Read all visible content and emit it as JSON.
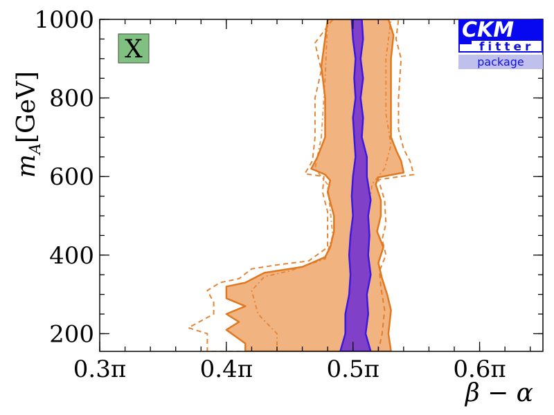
{
  "chart_data": {
    "type": "area",
    "xlabel": "β − α",
    "ylabel_main": "m",
    "ylabel_sub": "A",
    "ylabel_unit": "[GeV]",
    "xlim": [
      0.3,
      0.65
    ],
    "ylim": [
      155,
      1000
    ],
    "xticks": [
      {
        "value": 0.3,
        "label": "0.3π"
      },
      {
        "value": 0.4,
        "label": "0.4π"
      },
      {
        "value": 0.5,
        "label": "0.5π"
      },
      {
        "value": 0.6,
        "label": "0.6π"
      }
    ],
    "yticks": [
      {
        "value": 200,
        "label": "200"
      },
      {
        "value": 400,
        "label": "400"
      },
      {
        "value": 600,
        "label": "600"
      },
      {
        "value": 800,
        "label": "800"
      },
      {
        "value": 1000,
        "label": "1000"
      }
    ],
    "x_minor_step": 0.02,
    "y_minor_step": 50,
    "panel_label": "X",
    "colors": {
      "orange_fill": "#f0b07a",
      "orange_line": "#e07820",
      "blue_fill": "#8040c8",
      "blue_line": "#3a18e0",
      "panel_box": "#80c080"
    },
    "regions": [
      {
        "style": "orange-dashed",
        "polygon": [
          [
            0.484,
            1000
          ],
          [
            0.47,
            940
          ],
          [
            0.475,
            870
          ],
          [
            0.47,
            800
          ],
          [
            0.47,
            700
          ],
          [
            0.468,
            640
          ],
          [
            0.462,
            607
          ],
          [
            0.477,
            600
          ],
          [
            0.476,
            560
          ],
          [
            0.48,
            510
          ],
          [
            0.48,
            460
          ],
          [
            0.48,
            420
          ],
          [
            0.465,
            385
          ],
          [
            0.44,
            375
          ],
          [
            0.42,
            365
          ],
          [
            0.41,
            340
          ],
          [
            0.395,
            330
          ],
          [
            0.385,
            310
          ],
          [
            0.39,
            280
          ],
          [
            0.39,
            250
          ],
          [
            0.37,
            215
          ],
          [
            0.385,
            200
          ],
          [
            0.385,
            175
          ],
          [
            0.385,
            155
          ],
          [
            0.52,
            155
          ],
          [
            0.523,
            200
          ],
          [
            0.525,
            260
          ],
          [
            0.522,
            320
          ],
          [
            0.521,
            360
          ],
          [
            0.526,
            400
          ],
          [
            0.523,
            440
          ],
          [
            0.526,
            480
          ],
          [
            0.525,
            540
          ],
          [
            0.52,
            592
          ],
          [
            0.548,
            605
          ],
          [
            0.545,
            640
          ],
          [
            0.54,
            670
          ],
          [
            0.536,
            720
          ],
          [
            0.536,
            800
          ],
          [
            0.538,
            900
          ],
          [
            0.534,
            950
          ],
          [
            0.536,
            1000
          ]
        ]
      },
      {
        "style": "orange-dotted",
        "polygon": [
          [
            0.475,
            700
          ],
          [
            0.47,
            620
          ],
          [
            0.48,
            580
          ],
          [
            0.484,
            450
          ],
          [
            0.478,
            390
          ],
          [
            0.45,
            360
          ],
          [
            0.43,
            345
          ],
          [
            0.42,
            310
          ],
          [
            0.425,
            250
          ],
          [
            0.44,
            200
          ],
          [
            0.44,
            155
          ],
          [
            0.505,
            155
          ],
          [
            0.505,
            250
          ],
          [
            0.508,
            330
          ],
          [
            0.51,
            400
          ],
          [
            0.512,
            500
          ],
          [
            0.515,
            580
          ],
          [
            0.525,
            620
          ],
          [
            0.53,
            680
          ],
          [
            0.526,
            760
          ],
          [
            0.526,
            900
          ],
          [
            0.53,
            1000
          ],
          [
            0.48,
            1000
          ],
          [
            0.478,
            850
          ]
        ]
      },
      {
        "style": "orange-filled",
        "polygon": [
          [
            0.48,
            1000
          ],
          [
            0.475,
            880
          ],
          [
            0.478,
            800
          ],
          [
            0.478,
            700
          ],
          [
            0.472,
            650
          ],
          [
            0.467,
            620
          ],
          [
            0.478,
            605
          ],
          [
            0.482,
            590
          ],
          [
            0.48,
            560
          ],
          [
            0.485,
            500
          ],
          [
            0.485,
            460
          ],
          [
            0.482,
            420
          ],
          [
            0.478,
            395
          ],
          [
            0.46,
            370
          ],
          [
            0.43,
            355
          ],
          [
            0.415,
            330
          ],
          [
            0.4,
            320
          ],
          [
            0.4,
            290
          ],
          [
            0.415,
            270
          ],
          [
            0.4,
            250
          ],
          [
            0.41,
            230
          ],
          [
            0.4,
            210
          ],
          [
            0.415,
            175
          ],
          [
            0.415,
            155
          ],
          [
            0.53,
            155
          ],
          [
            0.528,
            200
          ],
          [
            0.53,
            260
          ],
          [
            0.527,
            300
          ],
          [
            0.523,
            340
          ],
          [
            0.52,
            380
          ],
          [
            0.524,
            420
          ],
          [
            0.519,
            460
          ],
          [
            0.522,
            500
          ],
          [
            0.522,
            540
          ],
          [
            0.518,
            580
          ],
          [
            0.52,
            598
          ],
          [
            0.54,
            610
          ],
          [
            0.538,
            640
          ],
          [
            0.535,
            660
          ],
          [
            0.53,
            700
          ],
          [
            0.53,
            800
          ],
          [
            0.53,
            900
          ],
          [
            0.532,
            960
          ],
          [
            0.528,
            1000
          ]
        ]
      },
      {
        "style": "blue-filled",
        "polygon": [
          [
            0.499,
            1000
          ],
          [
            0.5,
            950
          ],
          [
            0.502,
            900
          ],
          [
            0.501,
            850
          ],
          [
            0.502,
            800
          ],
          [
            0.5,
            750
          ],
          [
            0.501,
            700
          ],
          [
            0.502,
            650
          ],
          [
            0.5,
            600
          ],
          [
            0.499,
            550
          ],
          [
            0.5,
            500
          ],
          [
            0.498,
            450
          ],
          [
            0.497,
            400
          ],
          [
            0.498,
            350
          ],
          [
            0.497,
            300
          ],
          [
            0.494,
            250
          ],
          [
            0.494,
            200
          ],
          [
            0.49,
            155
          ],
          [
            0.514,
            155
          ],
          [
            0.51,
            200
          ],
          [
            0.512,
            250
          ],
          [
            0.511,
            300
          ],
          [
            0.514,
            350
          ],
          [
            0.512,
            400
          ],
          [
            0.513,
            450
          ],
          [
            0.512,
            500
          ],
          [
            0.514,
            540
          ],
          [
            0.511,
            600
          ],
          [
            0.511,
            650
          ],
          [
            0.507,
            700
          ],
          [
            0.508,
            750
          ],
          [
            0.506,
            800
          ],
          [
            0.508,
            850
          ],
          [
            0.506,
            900
          ],
          [
            0.508,
            950
          ],
          [
            0.507,
            1000
          ]
        ]
      }
    ]
  },
  "logo": {
    "line1": "CKM",
    "line2": "fitter",
    "line3": "package",
    "colors": {
      "blue": "#0808f0",
      "light": "#c0c0ec"
    }
  }
}
